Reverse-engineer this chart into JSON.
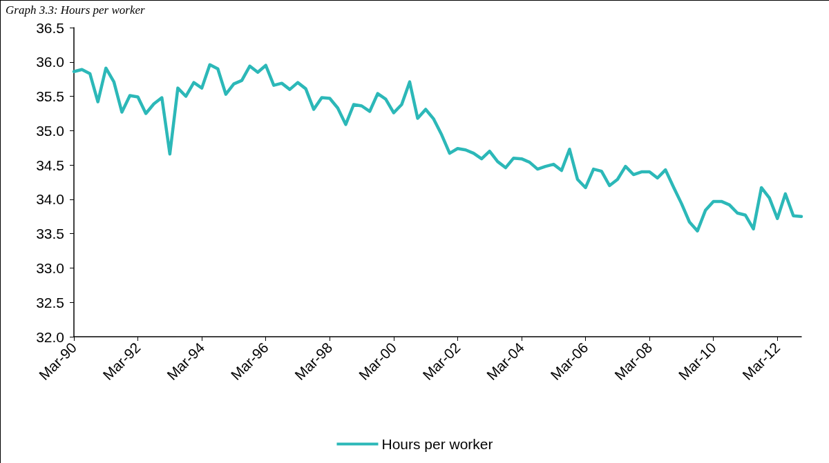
{
  "chart_data": {
    "type": "line",
    "title": "Graph 3.3: Hours per worker",
    "categories": [
      "Mar-90",
      null,
      null,
      null,
      null,
      null,
      null,
      null,
      "Mar-92",
      null,
      null,
      null,
      null,
      null,
      null,
      null,
      "Mar-94",
      null,
      null,
      null,
      null,
      null,
      null,
      null,
      "Mar-96",
      null,
      null,
      null,
      null,
      null,
      null,
      null,
      "Mar-98",
      null,
      null,
      null,
      null,
      null,
      null,
      null,
      "Mar-00",
      null,
      null,
      null,
      null,
      null,
      null,
      null,
      "Mar-02",
      null,
      null,
      null,
      null,
      null,
      null,
      null,
      "Mar-04",
      null,
      null,
      null,
      null,
      null,
      null,
      null,
      "Mar-06",
      null,
      null,
      null,
      null,
      null,
      null,
      null,
      "Mar-08",
      null,
      null,
      null,
      null,
      null,
      null,
      null,
      "Mar-10",
      null,
      null,
      null,
      null,
      null,
      null,
      null,
      "Mar-12",
      null,
      null,
      null
    ],
    "series": [
      {
        "name": "Hours per worker",
        "color": "#2cb8b8",
        "values": [
          35.86,
          35.89,
          35.83,
          35.42,
          35.91,
          35.71,
          35.27,
          35.51,
          35.49,
          35.25,
          35.39,
          35.48,
          34.66,
          35.62,
          35.5,
          35.7,
          35.62,
          35.96,
          35.9,
          35.53,
          35.68,
          35.73,
          35.94,
          35.85,
          35.95,
          35.66,
          35.69,
          35.6,
          35.7,
          35.61,
          35.31,
          35.48,
          35.47,
          35.33,
          35.09,
          35.38,
          35.36,
          35.28,
          35.54,
          35.46,
          35.26,
          35.38,
          35.71,
          35.18,
          35.31,
          35.17,
          34.94,
          34.67,
          34.74,
          34.72,
          34.67,
          34.59,
          34.7,
          34.55,
          34.46,
          34.6,
          34.59,
          34.54,
          34.44,
          34.48,
          34.51,
          34.42,
          34.73,
          34.29,
          34.17,
          34.44,
          34.41,
          34.2,
          34.29,
          34.48,
          34.36,
          34.4,
          34.4,
          34.31,
          34.43,
          34.18,
          33.94,
          33.67,
          33.54,
          33.84,
          33.97,
          33.97,
          33.92,
          33.8,
          33.77,
          33.57,
          34.17,
          34.02,
          33.72,
          34.08,
          33.76,
          33.75
        ]
      }
    ],
    "ylim": [
      32,
      36.5
    ],
    "yticks": [
      {
        "value": 32,
        "label": "32.0"
      },
      32.5,
      {
        "value": 33,
        "label": "33.0"
      },
      33.5,
      {
        "value": 34,
        "label": "34.0"
      },
      34.5,
      {
        "value": 35,
        "label": "35.0"
      },
      35.5,
      {
        "value": 36,
        "label": "36.0"
      },
      36.5
    ],
    "grid": false,
    "legend": "bottom",
    "marker": "none",
    "line_style": "solid"
  }
}
